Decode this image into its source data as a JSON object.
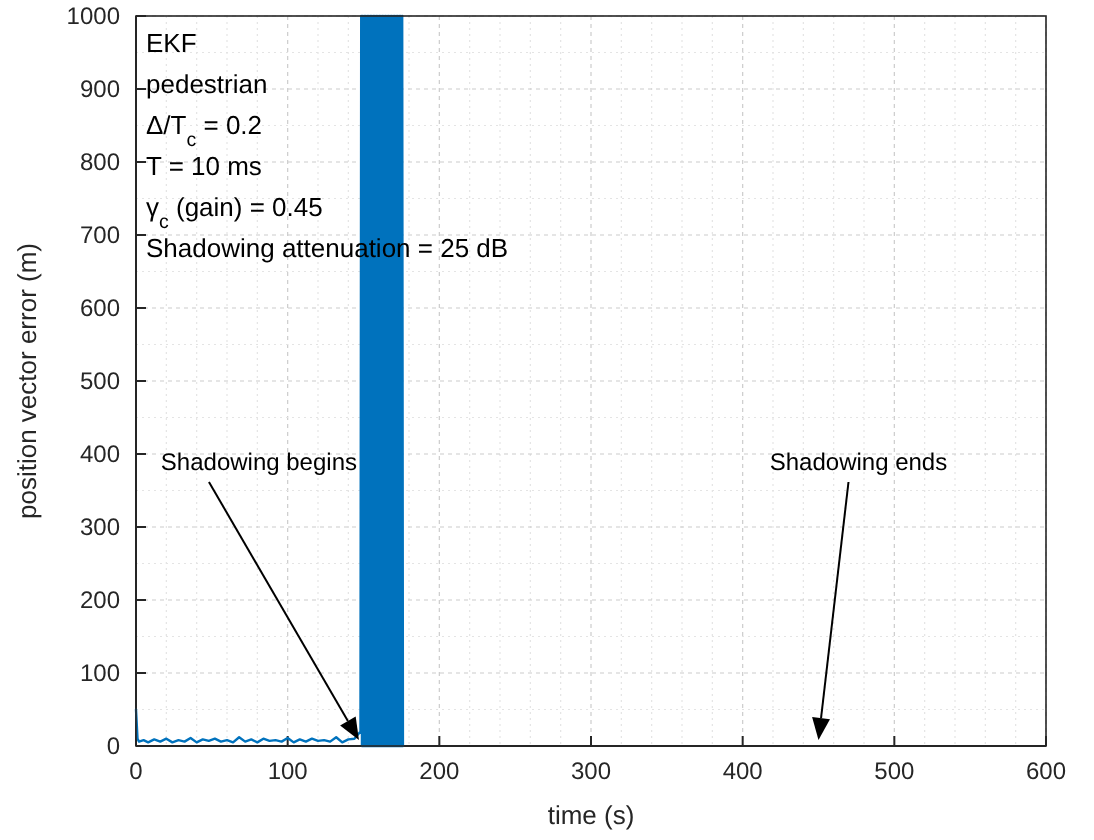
{
  "chart_data": {
    "type": "line",
    "xlabel": "time (s)",
    "ylabel": "position vector error (m)",
    "xlim": [
      0,
      600
    ],
    "ylim": [
      0,
      1000
    ],
    "xticks": [
      0,
      100,
      200,
      300,
      400,
      500,
      600
    ],
    "yticks": [
      0,
      100,
      200,
      300,
      400,
      500,
      600,
      700,
      800,
      900,
      1000
    ],
    "grid": true,
    "series": [
      {
        "color": "#0072bd",
        "x": [
          0,
          1,
          2,
          5,
          8,
          12,
          16,
          20,
          24,
          28,
          32,
          36,
          40,
          44,
          48,
          52,
          56,
          60,
          64,
          68,
          72,
          76,
          80,
          84,
          88,
          92,
          96,
          100,
          104,
          108,
          112,
          116,
          120,
          124,
          128,
          132,
          136,
          140,
          144,
          148,
          148.5,
          149,
          149.5,
          150,
          150.5,
          151,
          151.5,
          152,
          152.5,
          153,
          153.5,
          154,
          154.5,
          155,
          155.5,
          156,
          156.5,
          157,
          157.5,
          158,
          158.5,
          159,
          159.5,
          160,
          160.5,
          161,
          161.5,
          162,
          162.5,
          163,
          163.5,
          164,
          164.5,
          165,
          165.5,
          166,
          166.5,
          167,
          167.5,
          168,
          168.5,
          169,
          169.5,
          170,
          170.5,
          171,
          171.5,
          172,
          172.5,
          173,
          173.5,
          174,
          174.5,
          175,
          175.5,
          176
        ],
        "values": [
          50,
          10,
          6,
          8,
          5,
          9,
          6,
          10,
          5,
          8,
          6,
          11,
          5,
          9,
          7,
          10,
          6,
          8,
          5,
          12,
          6,
          9,
          5,
          10,
          7,
          8,
          6,
          11,
          5,
          9,
          6,
          10,
          7,
          8,
          6,
          12,
          5,
          9,
          10,
          20,
          1000,
          0,
          1000,
          0,
          1000,
          0,
          1000,
          0,
          1000,
          0,
          1000,
          0,
          1000,
          0,
          1000,
          0,
          1000,
          0,
          1000,
          0,
          1000,
          0,
          1000,
          0,
          1000,
          0,
          1000,
          0,
          1000,
          0,
          1000,
          0,
          1000,
          0,
          1000,
          0,
          1000,
          0,
          1000,
          0,
          1000,
          0,
          1000,
          0,
          1000,
          0,
          1000,
          0,
          1000,
          0,
          1000,
          0,
          1000,
          0,
          1000,
          0
        ]
      }
    ],
    "annotations": [
      "EKF",
      "pedestrian",
      "Δ/T$_{c}$ = 0.2",
      "T = 10 ms",
      "γ$_{c}$ (gain) = 0.45",
      "Shadowing attenuation = 25 dB",
      "Shadowing begins",
      "Shadowing ends"
    ]
  }
}
